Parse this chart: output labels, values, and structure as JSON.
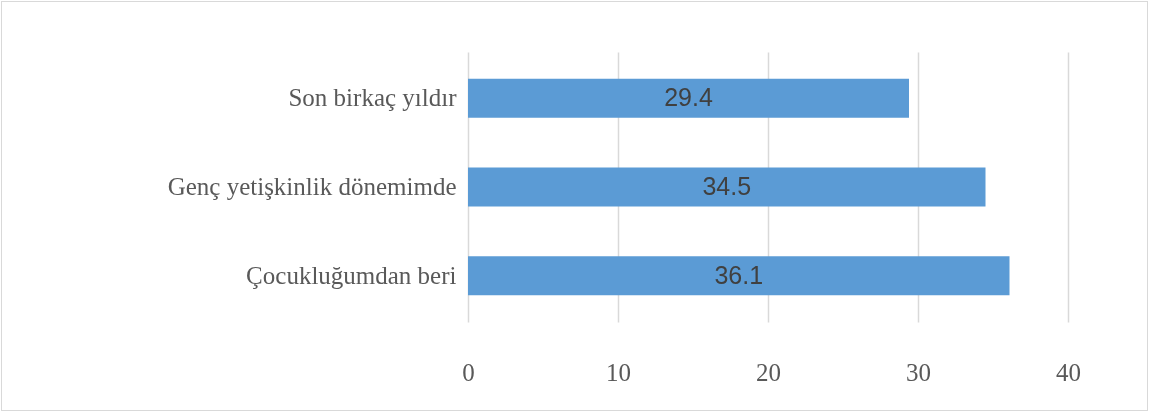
{
  "chart_data": {
    "type": "bar",
    "orientation": "horizontal",
    "categories": [
      "Son birkaç yıldır",
      "Genç yetişkinlik dönemimde",
      "Çocukluğumdan beri"
    ],
    "values": [
      29.4,
      34.5,
      36.1
    ],
    "color": "#5b9bd5",
    "xlim": [
      0,
      40
    ],
    "xticks": [
      0,
      10,
      20,
      30,
      40
    ],
    "grid": "x",
    "data_labels": true
  }
}
